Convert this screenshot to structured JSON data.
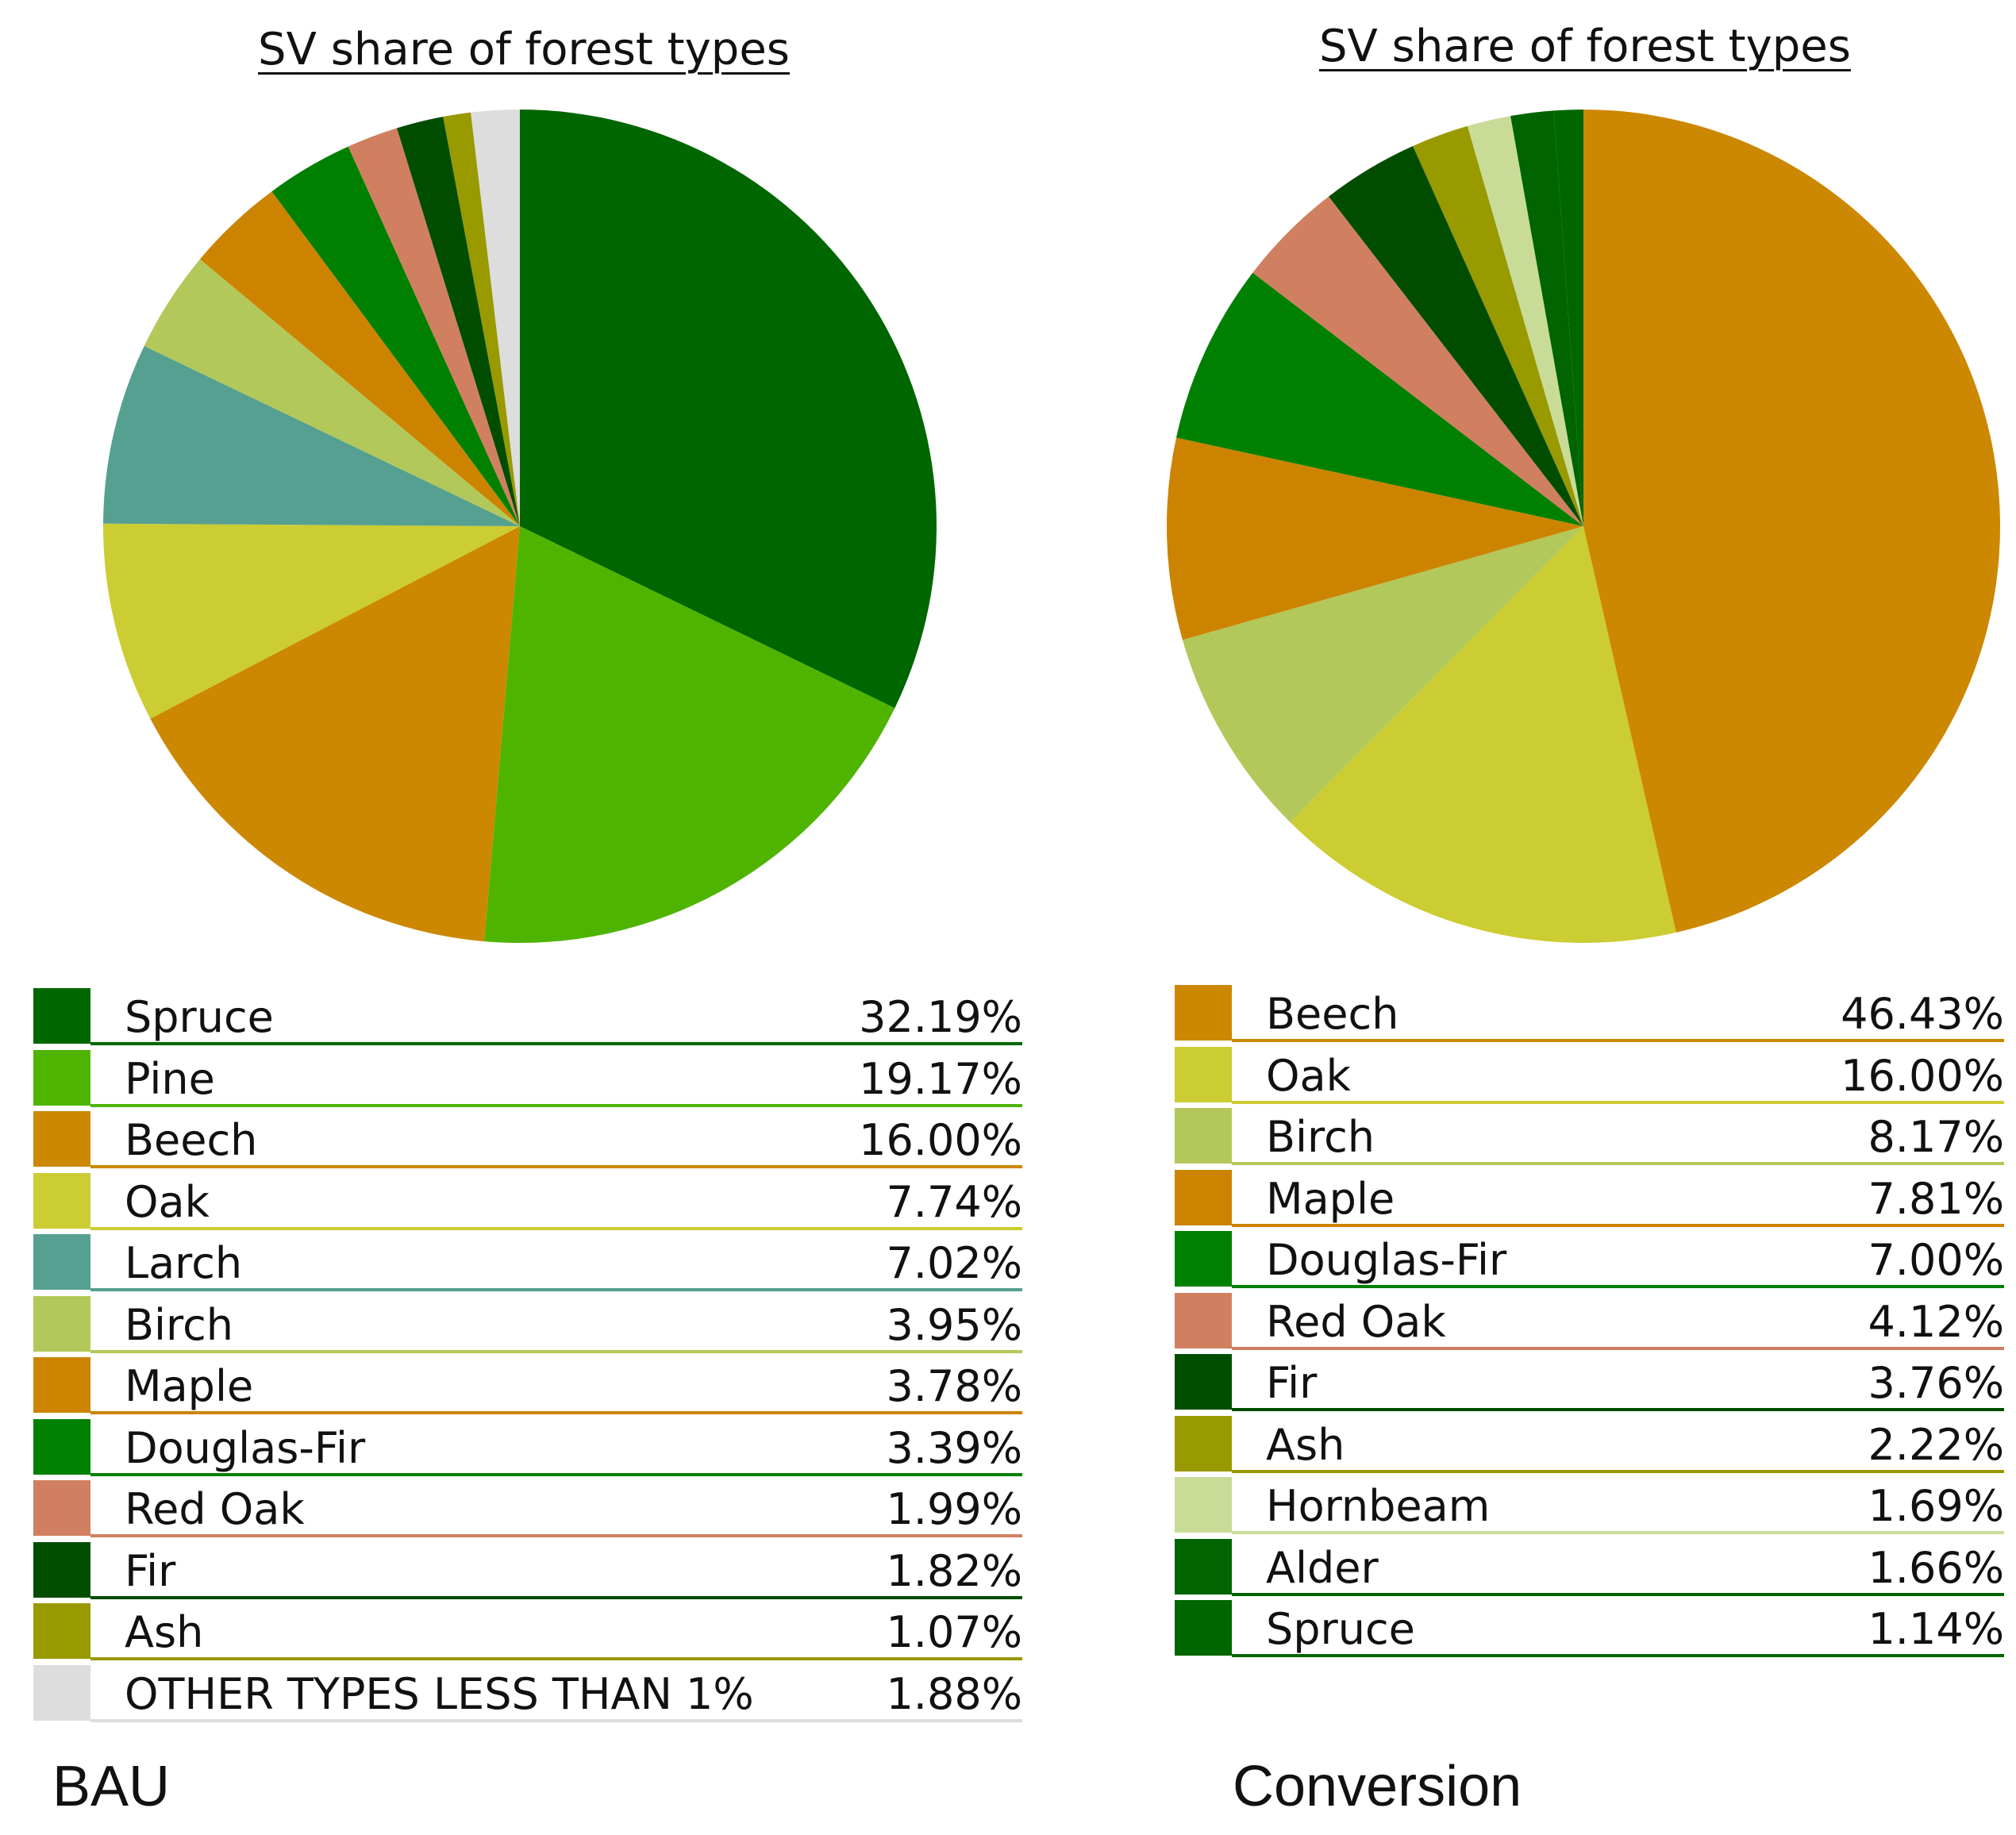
{
  "chart_data": [
    {
      "type": "pie",
      "title": "SV share of forest types",
      "scenario": "BAU",
      "slices": [
        {
          "label": "Spruce",
          "value": 32.19,
          "display": "32.19%",
          "color": "#006600"
        },
        {
          "label": "Pine",
          "value": 19.17,
          "display": "19.17%",
          "color": "#4fb400"
        },
        {
          "label": "Beech",
          "value": 16.0,
          "display": "16.00%",
          "color": "#cc8800"
        },
        {
          "label": "Oak",
          "value": 7.74,
          "display": "7.74%",
          "color": "#cccc33"
        },
        {
          "label": "Larch",
          "value": 7.02,
          "display": "7.02%",
          "color": "#55a090"
        },
        {
          "label": "Birch",
          "value": 3.95,
          "display": "3.95%",
          "color": "#b3c85a"
        },
        {
          "label": "Maple",
          "value": 3.78,
          "display": "3.78%",
          "color": "#cc8400"
        },
        {
          "label": "Douglas-Fir",
          "value": 3.39,
          "display": "3.39%",
          "color": "#008000"
        },
        {
          "label": "Red Oak",
          "value": 1.99,
          "display": "1.99%",
          "color": "#d08060"
        },
        {
          "label": "Fir",
          "value": 1.82,
          "display": "1.82%",
          "color": "#004d00"
        },
        {
          "label": "Ash",
          "value": 1.07,
          "display": "1.07%",
          "color": "#999900"
        },
        {
          "label": "OTHER TYPES LESS THAN 1%",
          "value": 1.88,
          "display": "1.88%",
          "color": "#dddddd"
        }
      ]
    },
    {
      "type": "pie",
      "title": "SV share of forest types",
      "scenario": "Conversion",
      "slices": [
        {
          "label": "Beech",
          "value": 46.43,
          "display": "46.43%",
          "color": "#cc8800"
        },
        {
          "label": "Oak",
          "value": 16.0,
          "display": "16.00%",
          "color": "#cccc33"
        },
        {
          "label": "Birch",
          "value": 8.17,
          "display": "8.17%",
          "color": "#b3c85a"
        },
        {
          "label": "Maple",
          "value": 7.81,
          "display": "7.81%",
          "color": "#cc8400"
        },
        {
          "label": "Douglas-Fir",
          "value": 7.0,
          "display": "7.00%",
          "color": "#008000"
        },
        {
          "label": "Red Oak",
          "value": 4.12,
          "display": "4.12%",
          "color": "#d08060"
        },
        {
          "label": "Fir",
          "value": 3.76,
          "display": "3.76%",
          "color": "#004d00"
        },
        {
          "label": "Ash",
          "value": 2.22,
          "display": "2.22%",
          "color": "#999900"
        },
        {
          "label": "Hornbeam",
          "value": 1.69,
          "display": "1.69%",
          "color": "#c8dc98"
        },
        {
          "label": "Alder",
          "value": 1.66,
          "display": "1.66%",
          "color": "#006400"
        },
        {
          "label": "Spruce",
          "value": 1.14,
          "display": "1.14%",
          "color": "#006600"
        }
      ]
    }
  ]
}
